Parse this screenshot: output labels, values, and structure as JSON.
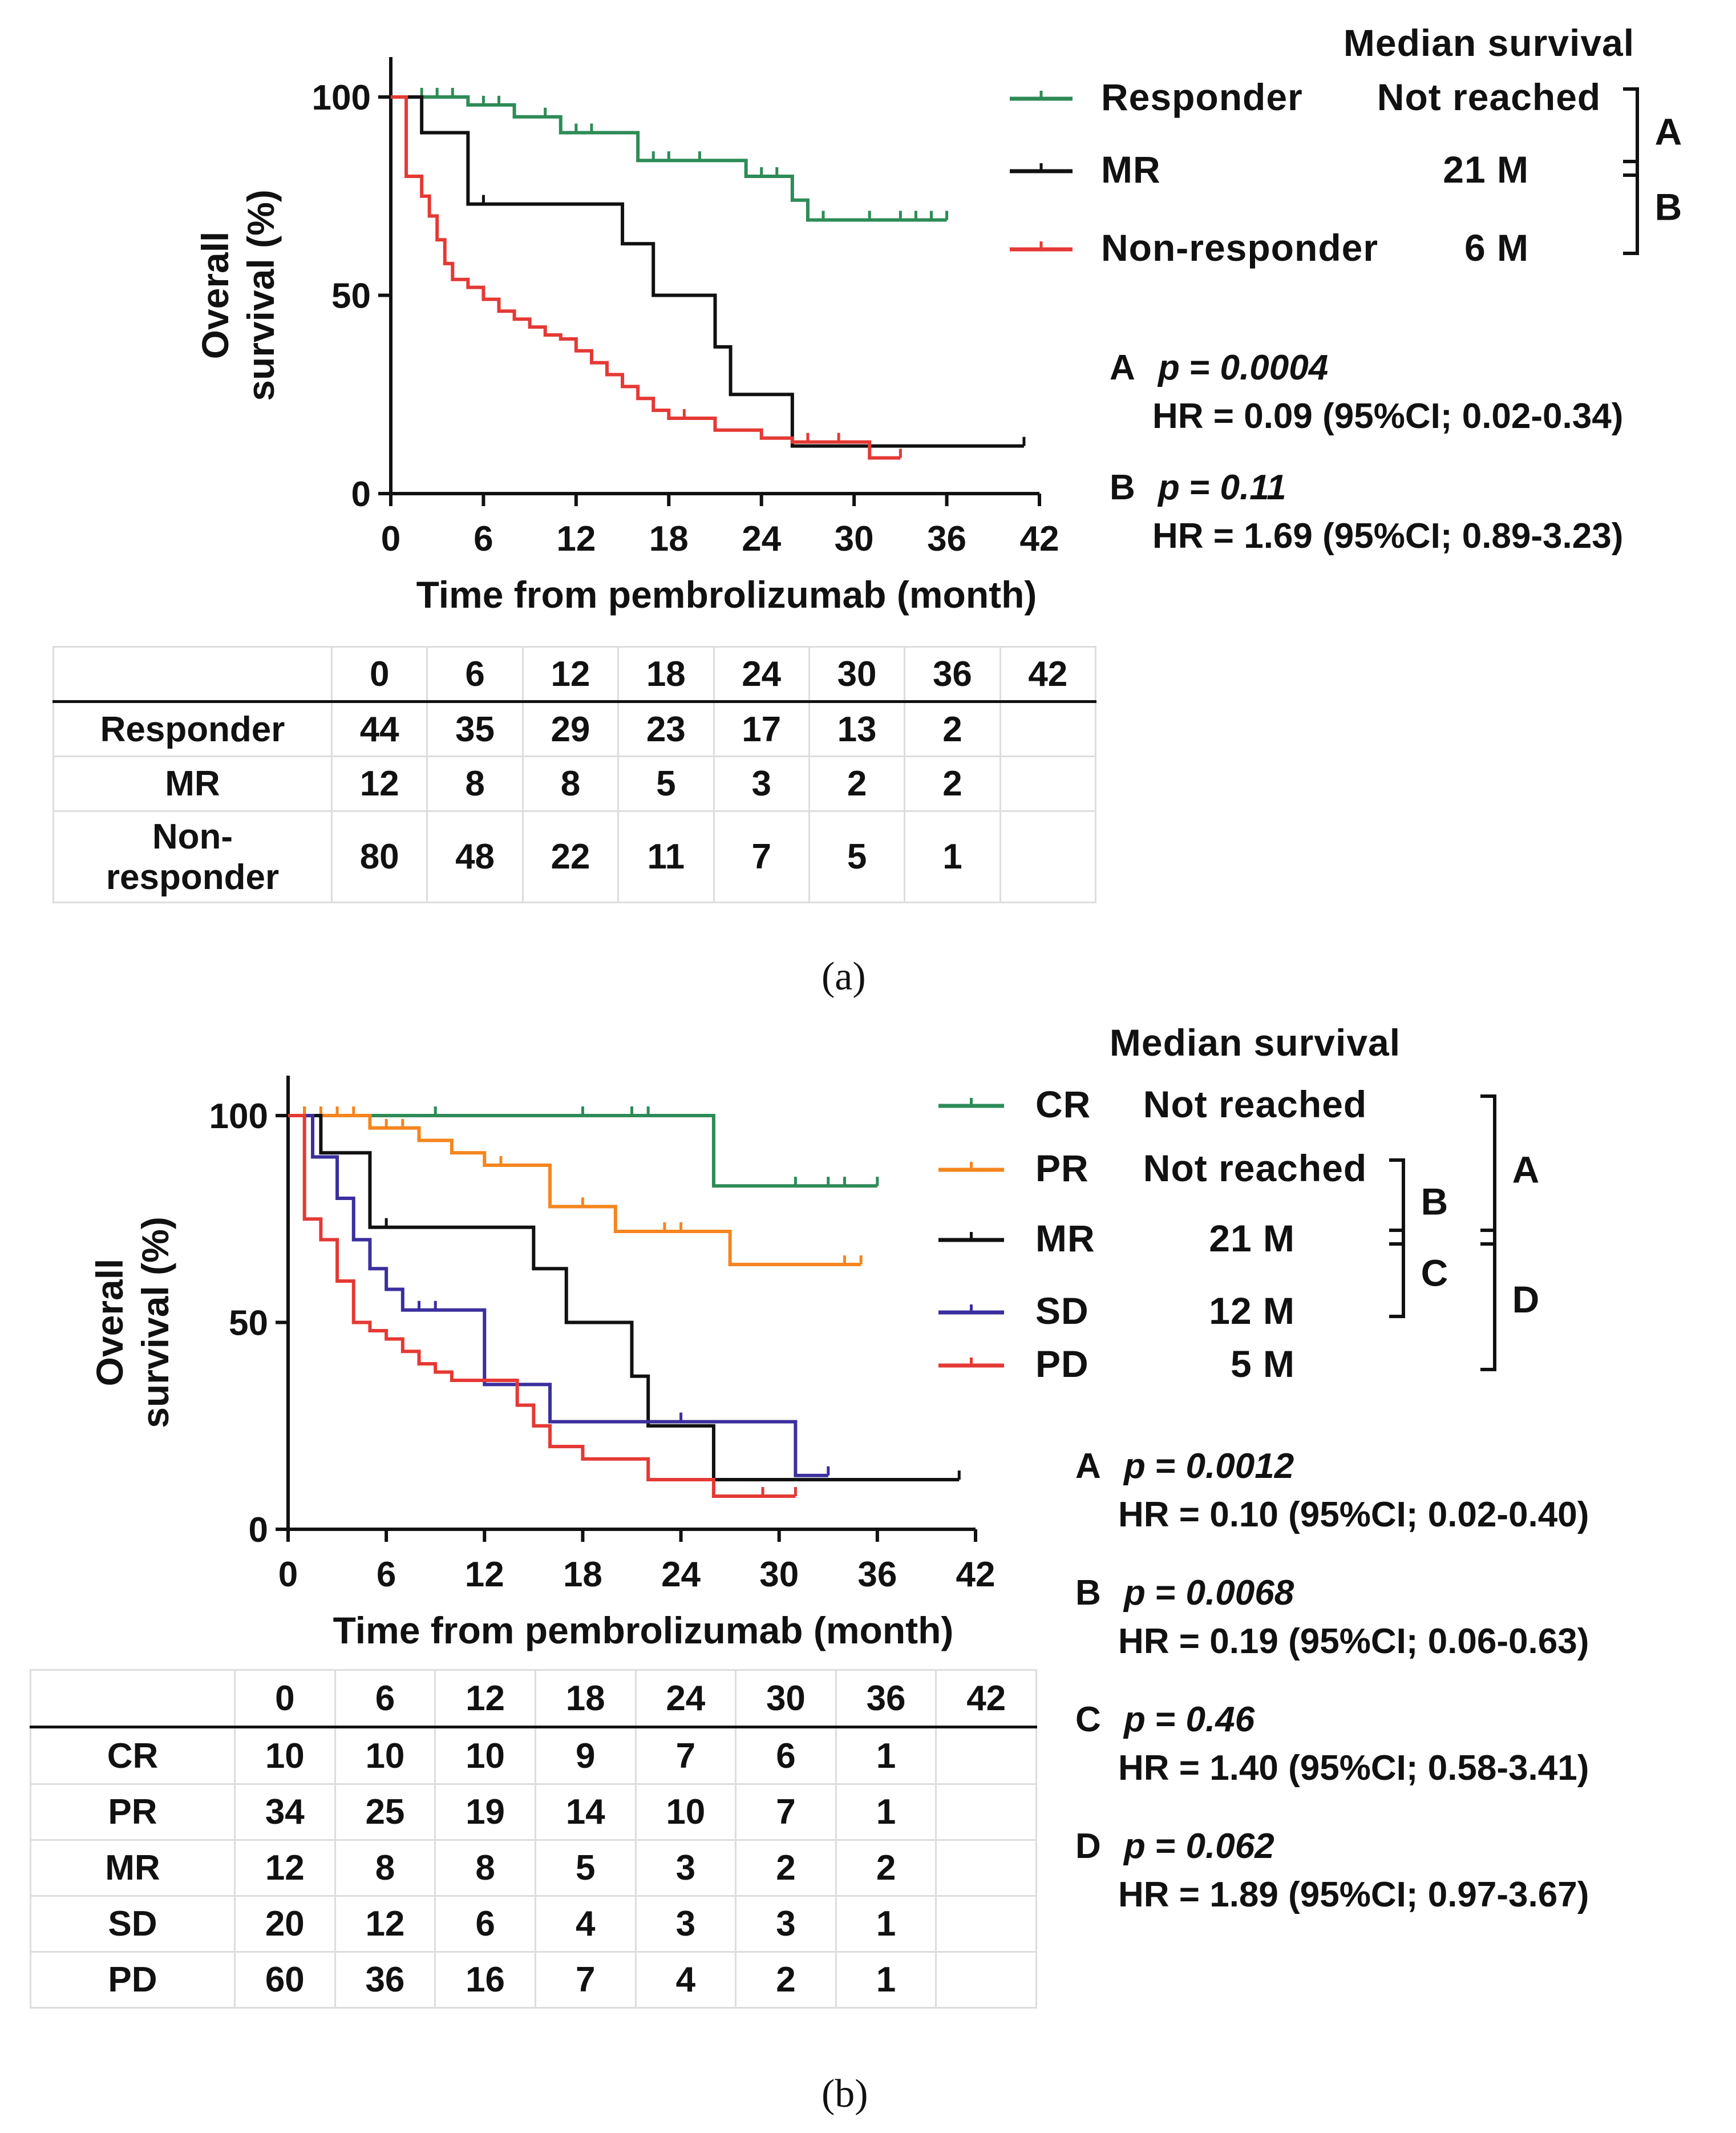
{
  "chart_data": [
    {
      "panel": "a",
      "type": "line",
      "step": true,
      "ylabel": "Overall survival (%)",
      "xlabel": "Time from pembrolizumab (month)",
      "xlim": [
        0,
        42
      ],
      "ylim": [
        0,
        100
      ],
      "xticks": [
        0,
        6,
        12,
        18,
        24,
        30,
        36,
        42
      ],
      "yticks": [
        0,
        50,
        100
      ],
      "legend_title": "Median survival",
      "series": [
        {
          "name": "Responder",
          "color": "#2e8b57",
          "median": "Not reached",
          "x": [
            0,
            5,
            8,
            11,
            16,
            23,
            26,
            27,
            36
          ],
          "y": [
            100,
            98,
            95,
            91,
            84,
            80,
            74,
            69,
            69
          ],
          "censor_x": [
            2,
            3,
            4,
            5,
            6,
            7,
            10,
            12,
            13,
            17,
            18,
            20,
            23,
            24,
            25,
            28,
            31,
            33,
            34,
            35,
            36
          ]
        },
        {
          "name": "MR",
          "color": "#111111",
          "median": "21 M",
          "x": [
            0,
            2,
            5,
            15,
            17,
            21,
            22,
            26,
            41
          ],
          "y": [
            100,
            91,
            73,
            63,
            50,
            37,
            25,
            12,
            12
          ],
          "censor_x": [
            6,
            41
          ]
        },
        {
          "name": "Non-responder",
          "color": "#e53935",
          "median": "6 M",
          "x": [
            0,
            1,
            2,
            2.5,
            3,
            3.5,
            4,
            5,
            6,
            7,
            8,
            9,
            10,
            11,
            12,
            13,
            14,
            15,
            16,
            17,
            18,
            21,
            24,
            26,
            31,
            33
          ],
          "y": [
            100,
            80,
            75,
            70,
            64,
            58,
            54,
            52,
            49,
            46,
            44,
            42,
            40,
            39,
            36,
            33,
            30,
            27,
            24,
            21,
            19,
            16,
            14,
            13,
            9,
            9
          ],
          "censor_x": [
            19,
            27,
            29,
            33
          ]
        }
      ],
      "brackets": [
        {
          "label": "A",
          "between": [
            "Responder",
            "MR"
          ]
        },
        {
          "label": "B",
          "between": [
            "MR",
            "Non-responder"
          ]
        }
      ],
      "stats": [
        {
          "label": "A",
          "p_prefix": "p = ",
          "p_value": "0.0004",
          "hr": "HR = 0.09 (95%CI; 0.02-0.34)"
        },
        {
          "label": "B",
          "p_prefix": "p = ",
          "p_value": "0.11",
          "hr": "HR = 1.69 (95%CI; 0.89-3.23)"
        }
      ],
      "risk_table": {
        "header": [
          "",
          "0",
          "6",
          "12",
          "18",
          "24",
          "30",
          "36",
          "42"
        ],
        "rows": [
          {
            "label": [
              "Responder"
            ],
            "values": [
              "44",
              "35",
              "29",
              "23",
              "17",
              "13",
              "2",
              ""
            ]
          },
          {
            "label": [
              "MR"
            ],
            "values": [
              "12",
              "8",
              "8",
              "5",
              "3",
              "2",
              "2",
              ""
            ]
          },
          {
            "label": [
              "Non-",
              "responder"
            ],
            "values": [
              "80",
              "48",
              "22",
              "11",
              "7",
              "5",
              "1",
              ""
            ]
          }
        ]
      },
      "caption": "(a)"
    },
    {
      "panel": "b",
      "type": "line",
      "step": true,
      "ylabel": "Overall survival (%)",
      "xlabel": "Time from pembrolizumab (month)",
      "xlim": [
        0,
        42
      ],
      "ylim": [
        0,
        100
      ],
      "xticks": [
        0,
        6,
        12,
        18,
        24,
        30,
        36,
        42
      ],
      "yticks": [
        0,
        50,
        100
      ],
      "legend_title": "Median survival",
      "series": [
        {
          "name": "CR",
          "color": "#2e8b57",
          "median": "Not reached",
          "x": [
            0,
            26,
            36
          ],
          "y": [
            100,
            83,
            83
          ],
          "censor_x": [
            1,
            9,
            18,
            21,
            22,
            31,
            33,
            34,
            36
          ]
        },
        {
          "name": "PR",
          "color": "#f5851f",
          "median": "Not reached",
          "x": [
            0,
            5,
            8,
            10,
            12,
            16,
            20,
            27,
            35
          ],
          "y": [
            100,
            97,
            94,
            91,
            88,
            78,
            72,
            64,
            64
          ],
          "censor_x": [
            1,
            2,
            3,
            4,
            6,
            7,
            13,
            18,
            23,
            24,
            34,
            35
          ]
        },
        {
          "name": "MR",
          "color": "#111111",
          "median": "21 M",
          "x": [
            0,
            2,
            5,
            15,
            17,
            21,
            22,
            26,
            41
          ],
          "y": [
            100,
            91,
            73,
            63,
            50,
            37,
            25,
            12,
            12
          ],
          "censor_x": [
            6,
            41
          ]
        },
        {
          "name": "SD",
          "color": "#3b2f9e",
          "median": "12 M",
          "x": [
            0,
            1.5,
            3,
            4,
            5,
            6,
            7,
            12,
            16,
            31,
            33
          ],
          "y": [
            100,
            90,
            80,
            70,
            63,
            58,
            53,
            35,
            26,
            13,
            13
          ],
          "censor_x": [
            8,
            9,
            24,
            33
          ]
        },
        {
          "name": "PD",
          "color": "#e53935",
          "median": "5 M",
          "x": [
            0,
            1,
            2,
            3,
            4,
            5,
            6,
            7,
            8,
            9,
            10,
            11,
            14,
            15,
            16,
            18,
            22,
            26,
            31
          ],
          "y": [
            100,
            75,
            70,
            60,
            50,
            48,
            46,
            43,
            40,
            38,
            36,
            36,
            30,
            25,
            20,
            17,
            12,
            8,
            8
          ],
          "censor_x": [
            18,
            29,
            31
          ]
        }
      ],
      "brackets": [
        {
          "label": "A",
          "between": [
            "CR",
            "MR"
          ]
        },
        {
          "label": "B",
          "between": [
            "PR",
            "MR"
          ]
        },
        {
          "label": "C",
          "between": [
            "MR",
            "SD"
          ]
        },
        {
          "label": "D",
          "between": [
            "MR",
            "PD"
          ]
        }
      ],
      "stats": [
        {
          "label": "A",
          "p_prefix": "p = ",
          "p_value": "0.0012",
          "hr": "HR = 0.10 (95%CI; 0.02-0.40)"
        },
        {
          "label": "B",
          "p_prefix": "p = ",
          "p_value": "0.0068",
          "hr": "HR = 0.19 (95%CI; 0.06-0.63)"
        },
        {
          "label": "C",
          "p_prefix": "p = ",
          "p_value": "0.46",
          "hr": "HR = 1.40 (95%CI; 0.58-3.41)"
        },
        {
          "label": "D",
          "p_prefix": "p = ",
          "p_value": "0.062",
          "hr": "HR = 1.89 (95%CI; 0.97-3.67)"
        }
      ],
      "risk_table": {
        "header": [
          "",
          "0",
          "6",
          "12",
          "18",
          "24",
          "30",
          "36",
          "42"
        ],
        "rows": [
          {
            "label": [
              "CR"
            ],
            "values": [
              "10",
              "10",
              "10",
              "9",
              "7",
              "6",
              "1",
              ""
            ]
          },
          {
            "label": [
              "PR"
            ],
            "values": [
              "34",
              "25",
              "19",
              "14",
              "10",
              "7",
              "1",
              ""
            ]
          },
          {
            "label": [
              "MR"
            ],
            "values": [
              "12",
              "8",
              "8",
              "5",
              "3",
              "2",
              "2",
              ""
            ]
          },
          {
            "label": [
              "SD"
            ],
            "values": [
              "20",
              "12",
              "6",
              "4",
              "3",
              "3",
              "1",
              ""
            ]
          },
          {
            "label": [
              "PD"
            ],
            "values": [
              "60",
              "36",
              "16",
              "7",
              "4",
              "2",
              "1",
              ""
            ]
          }
        ]
      },
      "caption": "(b)"
    }
  ]
}
